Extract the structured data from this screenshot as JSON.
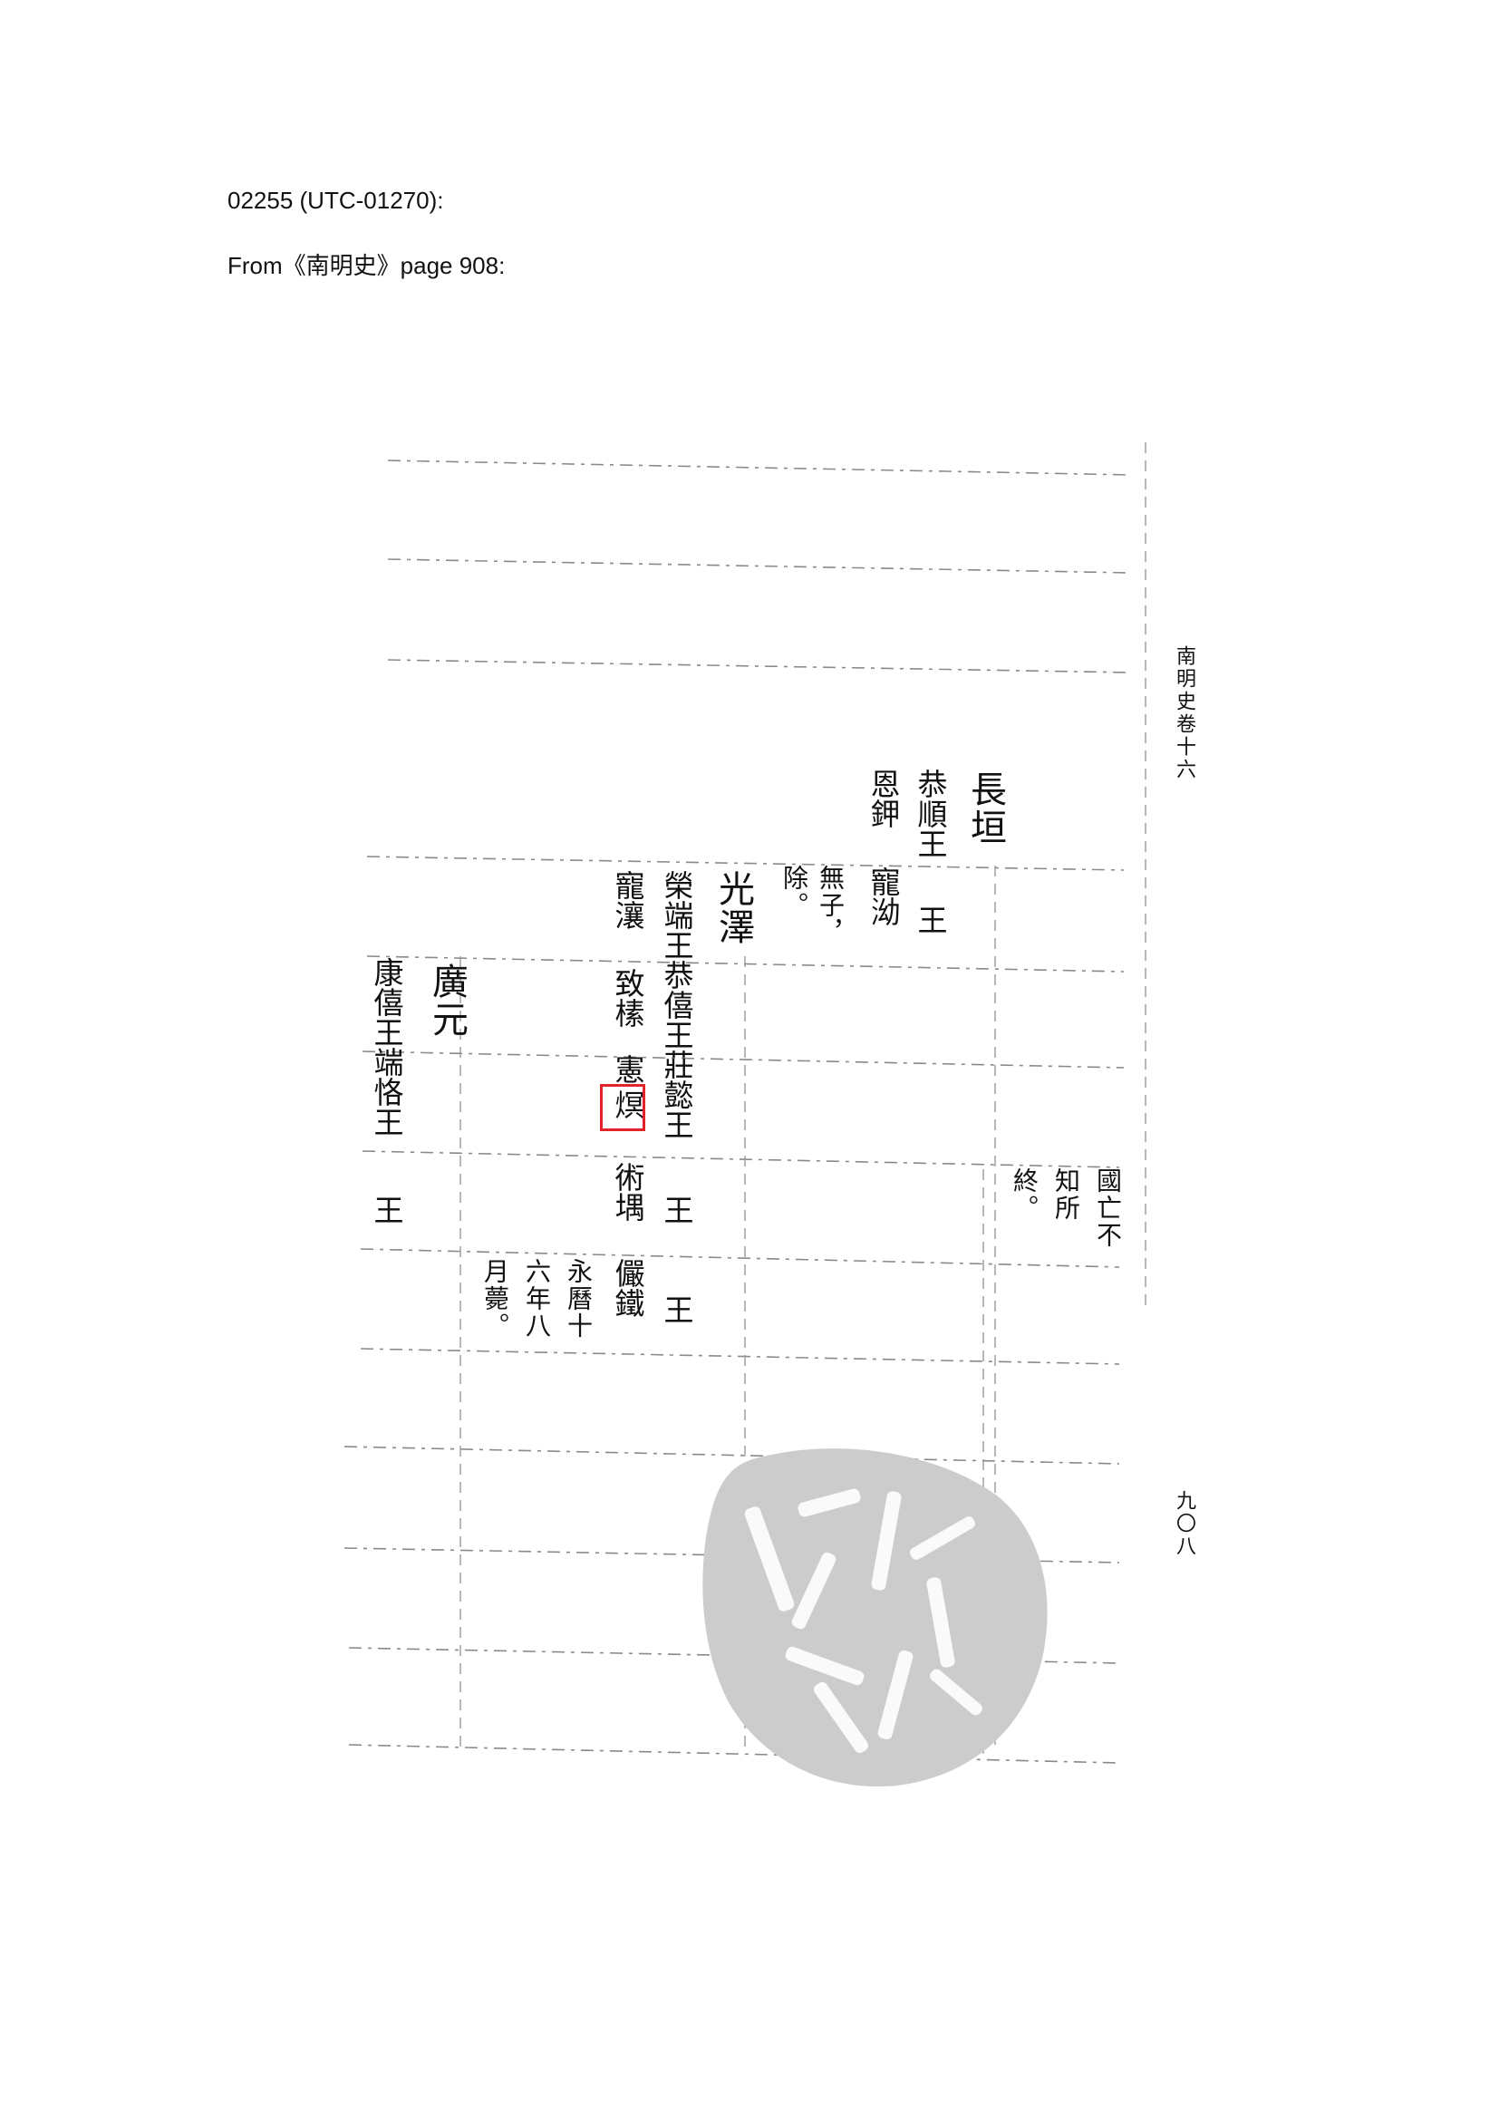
{
  "header": {
    "code_line": "02255 (UTC-01270):",
    "source_line": "From《南明史》page 908:"
  },
  "page": {
    "margin_title": "南明史卷十六",
    "page_number": "九〇八"
  },
  "columns": {
    "changheng": "長垣",
    "gongshun": "恭順王",
    "gongshun_wang": "王",
    "enjian": "恩鉀",
    "chongyou": "寵泑",
    "wuzi": "無子，",
    "chu": "除。",
    "guangze": "光澤",
    "rongduan": "榮端王恭僖王莊懿王",
    "wang_a": "王",
    "wang_b": "王",
    "chongrang": "寵瀼",
    "zhiji": "致榡",
    "xianjin_top": "憲",
    "xianjin_highlight": "熐",
    "shuyu": "術堣",
    "yantie": "儼鐵",
    "yongli": "永曆十",
    "liunian": "六年八",
    "yuehong": "月薨。",
    "guoguang": "國亡不",
    "zhisuo": "知所",
    "zhong": "終。",
    "guangyuan": "廣元",
    "kangxi": "康僖王端恪王",
    "wang_c": "王"
  },
  "seal": {
    "icon": "seal-stamp-icon",
    "color": "#c9c9c9"
  },
  "highlight": {
    "color": "#e0242a"
  }
}
